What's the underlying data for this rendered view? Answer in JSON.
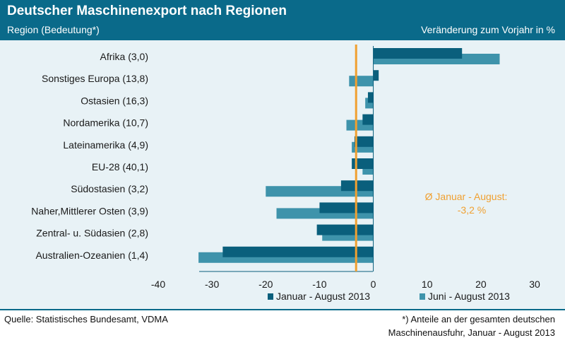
{
  "chart_data": {
    "type": "bar",
    "orientation": "horizontal",
    "title": "Deutscher Maschinenexport nach Regionen",
    "subtitle_left": "Region (Bedeutung*)",
    "subtitle_right": "Veränderung  zum Vorjahr in %",
    "categories": [
      "Afrika  (3,0)",
      "Sonstiges Europa  (13,8)",
      "Ostasien  (16,3)",
      "Nordamerika  (10,7)",
      "Lateinamerika  (4,9)",
      "EU-28  (40,1)",
      "Südostasien  (3,2)",
      "Naher,Mittlerer Osten  (3,9)",
      "Zentral- u. Südasien  (2,8)",
      "Australien-Ozeanien  (1,4)"
    ],
    "series": [
      {
        "name": "Januar - August 2013",
        "color": "#0a5f7c",
        "values": [
          16.5,
          1.0,
          -1.0,
          -2.0,
          -3.5,
          -4.0,
          -6.0,
          -10.0,
          -10.5,
          -28.0
        ]
      },
      {
        "name": "Juni - August 2013",
        "color": "#3e93ab",
        "values": [
          23.5,
          -4.5,
          -1.5,
          -5.0,
          -4.0,
          -2.0,
          -20.0,
          -18.0,
          -9.5,
          -32.5
        ]
      }
    ],
    "x_ticks": [
      "-40",
      "-30",
      "-20",
      "-10",
      "0",
      "10",
      "20",
      "30"
    ],
    "xlim": [
      -40,
      30
    ],
    "average": {
      "value": -3.2,
      "label_line1": "Ø Januar - August:",
      "label_line2": "-3,2 %",
      "color": "#f0a030"
    },
    "legend_position": "bottom-right"
  },
  "footer": {
    "source": "Quelle: Statistisches Bundesamt, VDMA",
    "footnote_line1": "*) Anteile an der gesamten deutschen",
    "footnote_line2": "Maschinenausfuhr, Januar - August 2013"
  },
  "colors": {
    "header_bg": "#0a6a8a",
    "plot_bg": "#e8f2f6",
    "accent": "#f0a030"
  }
}
